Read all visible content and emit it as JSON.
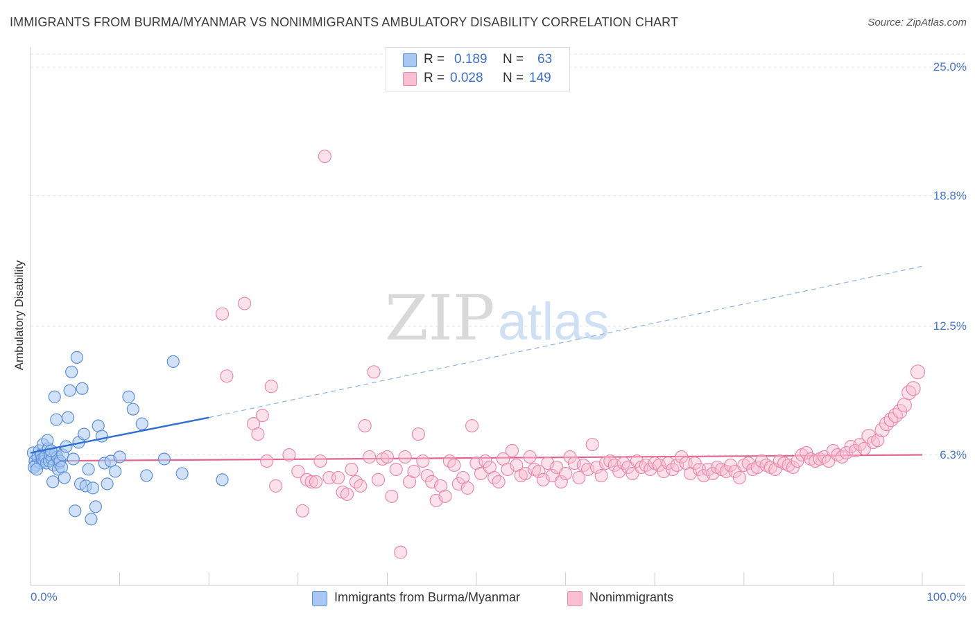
{
  "header": {
    "title": "IMMIGRANTS FROM BURMA/MYANMAR VS NONIMMIGRANTS AMBULATORY DISABILITY CORRELATION CHART",
    "source": "Source: ZipAtlas.com"
  },
  "watermark": {
    "zip": "ZIP",
    "atlas": "atlas"
  },
  "legend_top": {
    "rows": [
      {
        "r_label": "R =",
        "r_value": "0.189",
        "n_label": "N =",
        "n_value": "63"
      },
      {
        "r_label": "R =",
        "r_value": "0.028",
        "n_label": "N =",
        "n_value": "149"
      }
    ]
  },
  "legend_bottom": [
    "Immigrants from Burma/Myanmar",
    "Nonimmigrants"
  ],
  "colors": {
    "blue_fill": "#a9c8f2",
    "blue_stroke": "#5b8fd6",
    "blue_line": "#2f6fcf",
    "pink_fill": "#f7bfd1",
    "pink_stroke": "#e98aac",
    "pink_line": "#e0648d",
    "tick_text": "#4a78c9",
    "grid": "#e3e3e3"
  },
  "chart_data": {
    "type": "scatter",
    "title": "IMMIGRANTS FROM BURMA/MYANMAR VS NONIMMIGRANTS AMBULATORY DISABILITY CORRELATION CHART",
    "ylabel": "Ambulatory Disability",
    "xlim": [
      0,
      100
    ],
    "ylim": [
      0,
      25
    ],
    "y_ticks": [
      6.3,
      12.5,
      18.8,
      25.0
    ],
    "y_tick_labels": [
      "6.3%",
      "12.5%",
      "18.8%",
      "25.0%"
    ],
    "x_tick_labels": [
      "0.0%",
      "100.0%"
    ],
    "grid": "horizontal dashed",
    "legend_position": "top-center and bottom",
    "series": [
      {
        "name": "Immigrants from Burma/Myanmar",
        "R": 0.189,
        "N": 63,
        "trend": {
          "x": [
            0,
            20
          ],
          "y": [
            6.4,
            8.1
          ],
          "extended_dashed_to": [
            100,
            15.4
          ]
        },
        "points": [
          [
            0.3,
            6.4
          ],
          [
            0.5,
            6.0
          ],
          [
            0.6,
            5.8
          ],
          [
            0.8,
            6.2
          ],
          [
            1.0,
            6.5
          ],
          [
            1.1,
            5.9
          ],
          [
            1.2,
            6.3
          ],
          [
            1.3,
            6.1
          ],
          [
            1.4,
            6.8
          ],
          [
            1.5,
            6.0
          ],
          [
            1.6,
            6.2
          ],
          [
            1.8,
            5.9
          ],
          [
            2.0,
            6.6
          ],
          [
            2.1,
            6.0
          ],
          [
            2.2,
            6.3
          ],
          [
            2.4,
            6.1
          ],
          [
            2.6,
            5.8
          ],
          [
            2.8,
            6.4
          ],
          [
            3.0,
            6.2
          ],
          [
            3.2,
            5.9
          ],
          [
            0.4,
            5.7
          ],
          [
            0.7,
            5.6
          ],
          [
            1.9,
            7.0
          ],
          [
            2.3,
            6.5
          ],
          [
            2.5,
            5.0
          ],
          [
            2.7,
            9.1
          ],
          [
            2.9,
            8.0
          ],
          [
            3.1,
            5.6
          ],
          [
            3.3,
            6.0
          ],
          [
            3.5,
            5.7
          ],
          [
            3.6,
            6.3
          ],
          [
            3.8,
            5.2
          ],
          [
            4.0,
            6.7
          ],
          [
            4.2,
            8.1
          ],
          [
            4.4,
            9.4
          ],
          [
            4.6,
            10.3
          ],
          [
            4.8,
            6.1
          ],
          [
            5.0,
            3.6
          ],
          [
            5.2,
            11.0
          ],
          [
            5.4,
            6.9
          ],
          [
            5.6,
            4.9
          ],
          [
            5.8,
            9.5
          ],
          [
            6.0,
            7.3
          ],
          [
            6.2,
            4.8
          ],
          [
            6.5,
            5.6
          ],
          [
            6.8,
            3.2
          ],
          [
            7.0,
            4.7
          ],
          [
            7.3,
            3.8
          ],
          [
            7.6,
            7.7
          ],
          [
            8.0,
            7.2
          ],
          [
            8.3,
            5.9
          ],
          [
            8.6,
            4.9
          ],
          [
            9.0,
            6.0
          ],
          [
            9.5,
            5.5
          ],
          [
            10.0,
            6.2
          ],
          [
            11.0,
            9.1
          ],
          [
            11.5,
            8.5
          ],
          [
            12.5,
            7.8
          ],
          [
            13.0,
            5.3
          ],
          [
            15.0,
            6.1
          ],
          [
            16.0,
            10.8
          ],
          [
            17.0,
            5.4
          ],
          [
            21.5,
            5.1
          ]
        ]
      },
      {
        "name": "Nonimmigrants",
        "R": 0.028,
        "N": 149,
        "trend": {
          "x": [
            0,
            100
          ],
          "y": [
            6.0,
            6.3
          ]
        },
        "points": [
          [
            21.5,
            13.1
          ],
          [
            22.0,
            10.1
          ],
          [
            24.0,
            13.6
          ],
          [
            25.0,
            7.8
          ],
          [
            25.5,
            7.3
          ],
          [
            26.0,
            8.2
          ],
          [
            26.5,
            6.0
          ],
          [
            27.0,
            9.6
          ],
          [
            27.5,
            4.8
          ],
          [
            29.0,
            6.3
          ],
          [
            30.0,
            5.5
          ],
          [
            30.5,
            3.6
          ],
          [
            31.0,
            5.1
          ],
          [
            31.5,
            5.0
          ],
          [
            32.0,
            5.0
          ],
          [
            32.5,
            6.0
          ],
          [
            33.0,
            20.7
          ],
          [
            33.5,
            5.2
          ],
          [
            34.5,
            5.2
          ],
          [
            35.0,
            4.5
          ],
          [
            35.5,
            4.4
          ],
          [
            36.0,
            5.6
          ],
          [
            36.5,
            5.0
          ],
          [
            37.0,
            4.8
          ],
          [
            37.5,
            7.7
          ],
          [
            38.0,
            6.2
          ],
          [
            38.5,
            10.3
          ],
          [
            39.0,
            5.1
          ],
          [
            39.5,
            6.1
          ],
          [
            40.0,
            6.2
          ],
          [
            40.5,
            4.3
          ],
          [
            41.0,
            5.6
          ],
          [
            41.5,
            1.6
          ],
          [
            42.0,
            6.2
          ],
          [
            42.5,
            5.0
          ],
          [
            43.0,
            5.5
          ],
          [
            43.5,
            7.3
          ],
          [
            44.0,
            6.0
          ],
          [
            44.5,
            5.3
          ],
          [
            45.0,
            5.0
          ],
          [
            45.5,
            4.1
          ],
          [
            46.0,
            4.8
          ],
          [
            46.5,
            4.3
          ],
          [
            47.0,
            6.0
          ],
          [
            47.5,
            5.8
          ],
          [
            48.0,
            4.9
          ],
          [
            48.5,
            5.2
          ],
          [
            49.0,
            4.7
          ],
          [
            49.5,
            7.7
          ],
          [
            50.0,
            5.9
          ],
          [
            50.5,
            5.4
          ],
          [
            51.0,
            6.0
          ],
          [
            51.5,
            5.7
          ],
          [
            52.0,
            5.2
          ],
          [
            52.5,
            5.0
          ],
          [
            53.0,
            6.1
          ],
          [
            53.5,
            5.6
          ],
          [
            54.0,
            6.5
          ],
          [
            54.5,
            5.8
          ],
          [
            55.0,
            5.3
          ],
          [
            55.5,
            5.4
          ],
          [
            56.0,
            6.2
          ],
          [
            56.5,
            5.6
          ],
          [
            57.0,
            5.5
          ],
          [
            57.5,
            5.1
          ],
          [
            58.0,
            5.9
          ],
          [
            58.5,
            5.3
          ],
          [
            59.0,
            5.7
          ],
          [
            59.5,
            5.0
          ],
          [
            60.0,
            5.4
          ],
          [
            60.5,
            6.2
          ],
          [
            61.0,
            5.9
          ],
          [
            61.5,
            5.2
          ],
          [
            62.0,
            5.8
          ],
          [
            62.5,
            5.6
          ],
          [
            63.0,
            6.8
          ],
          [
            63.5,
            5.7
          ],
          [
            64.0,
            5.3
          ],
          [
            64.5,
            5.9
          ],
          [
            65.0,
            6.0
          ],
          [
            65.5,
            5.8
          ],
          [
            66.0,
            5.5
          ],
          [
            66.5,
            5.9
          ],
          [
            67.0,
            5.7
          ],
          [
            67.5,
            5.4
          ],
          [
            68.0,
            6.0
          ],
          [
            68.5,
            5.7
          ],
          [
            69.0,
            5.8
          ],
          [
            69.5,
            5.6
          ],
          [
            70.0,
            5.9
          ],
          [
            70.5,
            5.8
          ],
          [
            71.0,
            5.5
          ],
          [
            71.5,
            5.9
          ],
          [
            72.0,
            5.6
          ],
          [
            72.5,
            5.8
          ],
          [
            73.0,
            6.2
          ],
          [
            73.5,
            5.9
          ],
          [
            74.0,
            5.4
          ],
          [
            74.5,
            5.9
          ],
          [
            75.0,
            5.6
          ],
          [
            75.5,
            5.3
          ],
          [
            76.0,
            5.6
          ],
          [
            76.5,
            5.4
          ],
          [
            77.0,
            5.7
          ],
          [
            77.5,
            5.6
          ],
          [
            78.0,
            5.5
          ],
          [
            78.5,
            5.8
          ],
          [
            79.0,
            5.5
          ],
          [
            79.5,
            5.2
          ],
          [
            80.0,
            5.8
          ],
          [
            80.5,
            5.9
          ],
          [
            81.0,
            5.6
          ],
          [
            81.5,
            5.7
          ],
          [
            82.0,
            6.0
          ],
          [
            82.5,
            5.8
          ],
          [
            83.0,
            5.7
          ],
          [
            83.5,
            5.6
          ],
          [
            84.0,
            6.0
          ],
          [
            84.5,
            5.9
          ],
          [
            85.0,
            5.8
          ],
          [
            85.5,
            5.7
          ],
          [
            86.0,
            6.0
          ],
          [
            86.5,
            6.3
          ],
          [
            87.0,
            6.4
          ],
          [
            87.5,
            6.1
          ],
          [
            88.0,
            6.0
          ],
          [
            88.5,
            6.1
          ],
          [
            89.0,
            6.2
          ],
          [
            89.5,
            6.0
          ],
          [
            90.0,
            6.5
          ],
          [
            90.5,
            6.3
          ],
          [
            91.0,
            6.2
          ],
          [
            91.5,
            6.4
          ],
          [
            92.0,
            6.7
          ],
          [
            92.5,
            6.5
          ],
          [
            93.0,
            6.8
          ],
          [
            93.5,
            6.6
          ],
          [
            94.0,
            7.2
          ],
          [
            94.5,
            6.9
          ],
          [
            95.0,
            7.0
          ],
          [
            95.5,
            7.5
          ],
          [
            96.0,
            7.8
          ],
          [
            96.5,
            8.0
          ],
          [
            97.0,
            8.2
          ],
          [
            97.5,
            8.4
          ],
          [
            98.0,
            8.7
          ],
          [
            98.5,
            9.3
          ],
          [
            99.0,
            9.5
          ],
          [
            99.5,
            10.3
          ]
        ]
      }
    ]
  }
}
